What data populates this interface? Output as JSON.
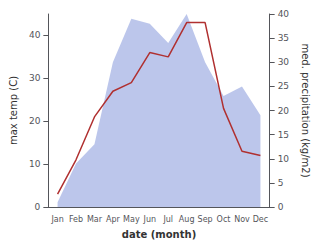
{
  "chart_data": {
    "type": "line",
    "xlabel": "date (month)",
    "ylabel": "max temp (C)",
    "y2label": "med. precipitation (kg/m2)",
    "categories": [
      "Jan",
      "Feb",
      "Mar",
      "Apr",
      "May",
      "Jun",
      "Jul",
      "Aug",
      "Sep",
      "Oct",
      "Nov",
      "Dec"
    ],
    "series": [
      {
        "type": "area",
        "color": "#b0bce8",
        "axis": "y2",
        "values": [
          1,
          9,
          13,
          30,
          39,
          38,
          34,
          40,
          30,
          23,
          25,
          19
        ]
      },
      {
        "type": "line",
        "color": "#b03030",
        "values": [
          3,
          11,
          21,
          27,
          29,
          36,
          35,
          43,
          43,
          23,
          13,
          12
        ]
      }
    ],
    "ylim": [
      0,
      45
    ],
    "yticks": [
      0,
      10,
      20,
      30,
      40
    ],
    "y2lim": [
      0,
      40
    ],
    "y2ticks": [
      0,
      5,
      10,
      15,
      20,
      25,
      30,
      35,
      40
    ],
    "grid": false
  }
}
